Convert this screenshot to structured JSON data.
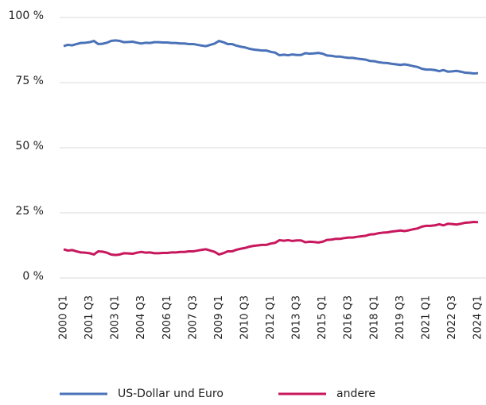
{
  "chart_data": {
    "type": "line",
    "categories": [
      "2000 Q1",
      null,
      null,
      null,
      null,
      null,
      "2001 Q3",
      null,
      null,
      null,
      null,
      null,
      "2003 Q1",
      null,
      null,
      null,
      null,
      null,
      "2004 Q3",
      null,
      null,
      null,
      null,
      null,
      "2006 Q1",
      null,
      null,
      null,
      null,
      null,
      "2007 Q3",
      null,
      null,
      null,
      null,
      null,
      "2009 Q1",
      null,
      null,
      null,
      null,
      null,
      "2010 Q3",
      null,
      null,
      null,
      null,
      null,
      "2012 Q1",
      null,
      null,
      null,
      null,
      null,
      "2013 Q3",
      null,
      null,
      null,
      null,
      null,
      "2015 Q1",
      null,
      null,
      null,
      null,
      null,
      "2016 Q3",
      null,
      null,
      null,
      null,
      null,
      "2018 Q1",
      null,
      null,
      null,
      null,
      null,
      "2019 Q3",
      null,
      null,
      null,
      null,
      null,
      "2021 Q1",
      null,
      null,
      null,
      null,
      null,
      "2022 Q3",
      null,
      null,
      null,
      null,
      null,
      "2024 Q1"
    ],
    "series": [
      {
        "name": "US-Dollar und Euro",
        "color": "#4a72b8",
        "values": [
          89,
          89.5,
          89.3,
          89.8,
          90.2,
          90.3,
          90.5,
          91,
          89.8,
          89.9,
          90.3,
          91,
          91.2,
          91,
          90.5,
          90.6,
          90.7,
          90.3,
          90,
          90.3,
          90.2,
          90.5,
          90.5,
          90.4,
          90.4,
          90.2,
          90.2,
          90,
          90,
          89.8,
          89.8,
          89.5,
          89.2,
          89,
          89.5,
          90,
          91,
          90.5,
          89.8,
          89.8,
          89.2,
          88.8,
          88.5,
          88,
          87.7,
          87.5,
          87.3,
          87.3,
          86.8,
          86.5,
          85.5,
          85.7,
          85.5,
          85.8,
          85.6,
          85.6,
          86.3,
          86.1,
          86.2,
          86.4,
          86.1,
          85.4,
          85.3,
          85,
          85,
          84.7,
          84.5,
          84.5,
          84.2,
          84,
          83.8,
          83.3,
          83.2,
          82.8,
          82.6,
          82.5,
          82.2,
          82,
          81.8,
          82,
          81.7,
          81.3,
          81,
          80.3,
          80,
          80,
          79.8,
          79.4,
          79.8,
          79.2,
          79.3,
          79.5,
          79.2,
          78.8,
          78.7,
          78.5,
          78.6
        ]
      },
      {
        "name": "andere",
        "color": "#c8175d",
        "values": [
          11,
          10.5,
          10.7,
          10.2,
          9.8,
          9.7,
          9.5,
          9,
          10.2,
          10.1,
          9.7,
          9,
          8.8,
          9,
          9.5,
          9.4,
          9.3,
          9.7,
          10,
          9.7,
          9.8,
          9.5,
          9.5,
          9.6,
          9.6,
          9.8,
          9.8,
          10,
          10,
          10.2,
          10.2,
          10.5,
          10.8,
          11,
          10.5,
          10,
          9,
          9.5,
          10.2,
          10.2,
          10.8,
          11.2,
          11.5,
          12,
          12.3,
          12.5,
          12.7,
          12.7,
          13.2,
          13.5,
          14.5,
          14.3,
          14.5,
          14.2,
          14.4,
          14.4,
          13.7,
          13.9,
          13.8,
          13.6,
          13.9,
          14.6,
          14.7,
          15,
          15,
          15.3,
          15.5,
          15.5,
          15.8,
          16,
          16.2,
          16.7,
          16.8,
          17.2,
          17.4,
          17.5,
          17.8,
          18,
          18.2,
          18,
          18.3,
          18.7,
          19,
          19.7,
          20,
          20,
          20.2,
          20.6,
          20.2,
          20.8,
          20.7,
          20.5,
          20.8,
          21.2,
          21.3,
          21.5,
          21.4
        ]
      }
    ],
    "ylim": [
      0,
      100
    ],
    "yticks": [
      {
        "value": 0,
        "label": "0 %"
      },
      {
        "value": 25,
        "label": "25 %"
      },
      {
        "value": 50,
        "label": "50 %"
      },
      {
        "value": 75,
        "label": "75 %"
      },
      {
        "value": 100,
        "label": "100 %"
      }
    ],
    "grid": true,
    "legend": "bottom"
  }
}
